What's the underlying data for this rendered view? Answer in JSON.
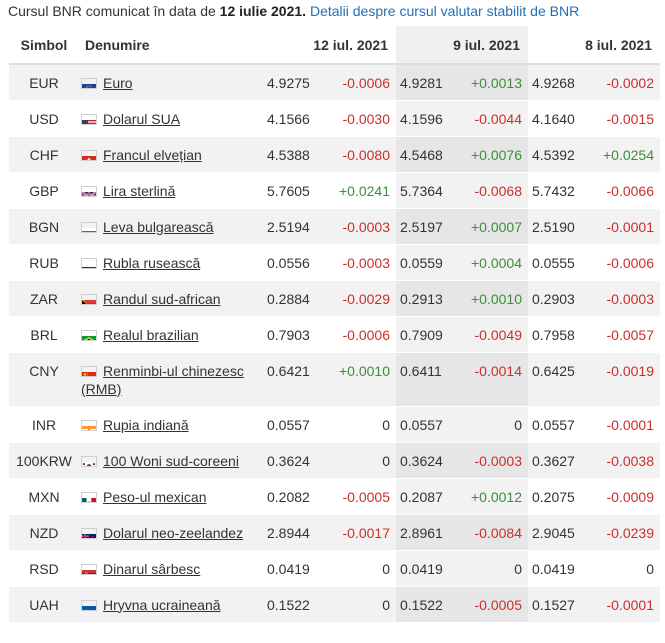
{
  "caption": {
    "prefix": "Cursul BNR comunicat în data de",
    "date": "12 iulie 2021.",
    "link": "Detalii despre cursul valutar stabilit de BNR"
  },
  "table": {
    "headers": {
      "symbol": "Simbol",
      "name": "Denumire",
      "date1": "12 iul. 2021",
      "date2": "9 iul. 2021",
      "date3": "8 iul. 2021"
    },
    "rows": [
      {
        "symbol": "EUR",
        "name": "Euro",
        "flag": "eu-flag-icon",
        "v1": "4.9275",
        "d1": "-0.0006",
        "v2": "4.9281",
        "d2": "+0.0013",
        "v3": "4.9268",
        "d3": "-0.0002"
      },
      {
        "symbol": "USD",
        "name": "Dolarul SUA",
        "flag": "us-flag-icon",
        "v1": "4.1566",
        "d1": "-0.0030",
        "v2": "4.1596",
        "d2": "-0.0044",
        "v3": "4.1640",
        "d3": "-0.0015"
      },
      {
        "symbol": "CHF",
        "name": "Francul elvețian",
        "flag": "ch-flag-icon",
        "v1": "4.5388",
        "d1": "-0.0080",
        "v2": "4.5468",
        "d2": "+0.0076",
        "v3": "4.5392",
        "d3": "+0.0254"
      },
      {
        "symbol": "GBP",
        "name": "Lira sterlină",
        "flag": "gb-flag-icon",
        "v1": "5.7605",
        "d1": "+0.0241",
        "v2": "5.7364",
        "d2": "-0.0068",
        "v3": "5.7432",
        "d3": "-0.0066"
      },
      {
        "symbol": "BGN",
        "name": "Leva bulgarească",
        "flag": "bg-flag-icon",
        "v1": "2.5194",
        "d1": "-0.0003",
        "v2": "2.5197",
        "d2": "+0.0007",
        "v3": "2.5190",
        "d3": "-0.0001"
      },
      {
        "symbol": "RUB",
        "name": "Rubla rusească",
        "flag": "ru-flag-icon",
        "v1": "0.0556",
        "d1": "-0.0003",
        "v2": "0.0559",
        "d2": "+0.0004",
        "v3": "0.0555",
        "d3": "-0.0006"
      },
      {
        "symbol": "ZAR",
        "name": "Randul sud-african",
        "flag": "za-flag-icon",
        "v1": "0.2884",
        "d1": "-0.0029",
        "v2": "0.2913",
        "d2": "+0.0010",
        "v3": "0.2903",
        "d3": "-0.0003"
      },
      {
        "symbol": "BRL",
        "name": "Realul brazilian",
        "flag": "br-flag-icon",
        "v1": "0.7903",
        "d1": "-0.0006",
        "v2": "0.7909",
        "d2": "-0.0049",
        "v3": "0.7958",
        "d3": "-0.0057"
      },
      {
        "symbol": "CNY",
        "name": "Renminbi-ul chinezesc (RMB)",
        "flag": "cn-flag-icon",
        "v1": "0.6421",
        "d1": "+0.0010",
        "v2": "0.6411",
        "d2": "-0.0014",
        "v3": "0.6425",
        "d3": "-0.0019"
      },
      {
        "symbol": "INR",
        "name": "Rupia indiană",
        "flag": "in-flag-icon",
        "v1": "0.0557",
        "d1": "0",
        "v2": "0.0557",
        "d2": "0",
        "v3": "0.0557",
        "d3": "-0.0001"
      },
      {
        "symbol": "100KRW",
        "name": "100 Woni sud-coreeni",
        "flag": "kr-flag-icon",
        "v1": "0.3624",
        "d1": "0",
        "v2": "0.3624",
        "d2": "-0.0003",
        "v3": "0.3627",
        "d3": "-0.0038"
      },
      {
        "symbol": "MXN",
        "name": "Peso-ul mexican",
        "flag": "mx-flag-icon",
        "v1": "0.2082",
        "d1": "-0.0005",
        "v2": "0.2087",
        "d2": "+0.0012",
        "v3": "0.2075",
        "d3": "-0.0009"
      },
      {
        "symbol": "NZD",
        "name": "Dolarul neo-zeelandez",
        "flag": "nz-flag-icon",
        "v1": "2.8944",
        "d1": "-0.0017",
        "v2": "2.8961",
        "d2": "-0.0084",
        "v3": "2.9045",
        "d3": "-0.0239"
      },
      {
        "symbol": "RSD",
        "name": "Dinarul sârbesc",
        "flag": "rs-flag-icon",
        "v1": "0.0419",
        "d1": "0",
        "v2": "0.0419",
        "d2": "0",
        "v3": "0.0419",
        "d3": "0"
      },
      {
        "symbol": "UAH",
        "name": "Hryvna ucraineană",
        "flag": "ua-flag-icon",
        "v1": "0.1522",
        "d1": "0",
        "v2": "0.1522",
        "d2": "-0.0005",
        "v3": "0.1527",
        "d3": "-0.0001"
      }
    ]
  },
  "colors": {
    "negative": "#c9302c",
    "positive": "#3c8d3c",
    "link": "#1f6fb8"
  }
}
